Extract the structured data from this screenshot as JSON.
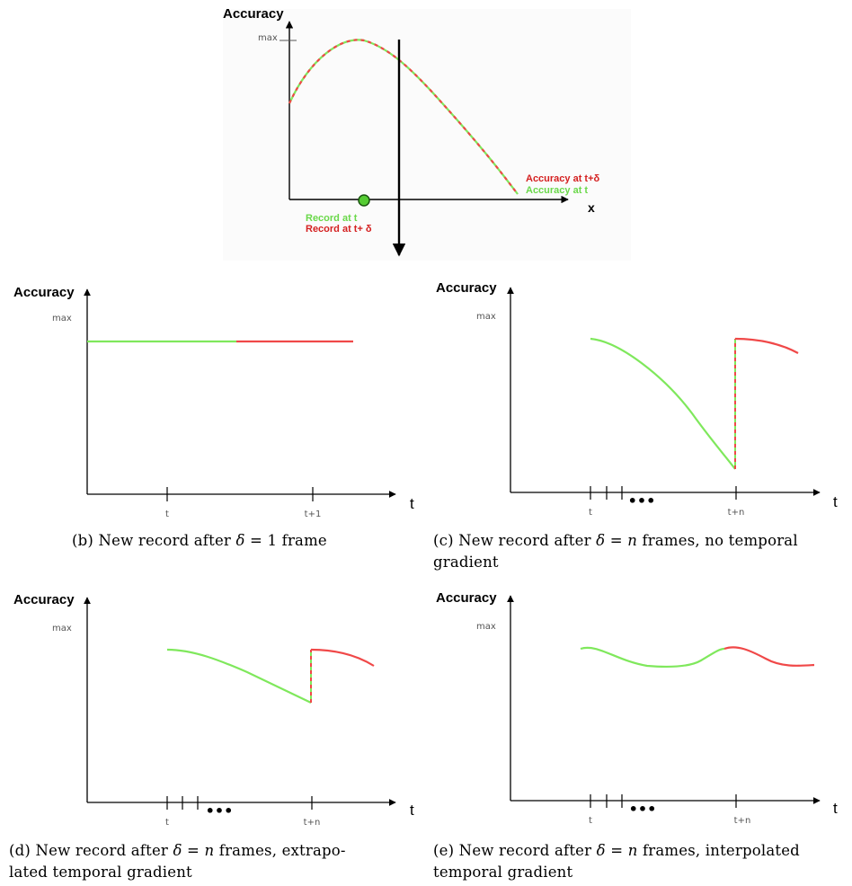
{
  "colors": {
    "current": "#7fe85c",
    "new": "#f04848",
    "dot": "#55cc33"
  },
  "diagram_a": {
    "y_title": "Accuracy",
    "max_label": "max",
    "x_label": "x",
    "legend_new": "Accuracy at t+δ",
    "legend_current": "Accuracy at t",
    "record_current": "Record at t",
    "record_new": "Record at t+ δ"
  },
  "panels": {
    "b": {
      "y_title": "Accuracy",
      "max_label": "max",
      "t_axis": "t",
      "ticks": [
        "t",
        "t+1"
      ],
      "caption_prefix": "(b)  New record after ",
      "caption_delta": "δ",
      "caption_rest": " = 1 frame"
    },
    "c": {
      "y_title": "Accuracy",
      "max_label": "max",
      "t_axis": "t",
      "ticks": [
        "t",
        "t+n"
      ],
      "dots": "•••",
      "caption_prefix": "(c)  New record after ",
      "caption_delta": "δ",
      "caption_eq": " = ",
      "caption_n": "n",
      "caption_rest": " frames, no temporal",
      "caption_line2": "gradient"
    },
    "d": {
      "y_title": "Accuracy",
      "max_label": "max",
      "t_axis": "t",
      "ticks": [
        "t",
        "t+n"
      ],
      "dots": "•••",
      "caption_prefix": "(d)  New record after ",
      "caption_delta": "δ",
      "caption_eq": " = ",
      "caption_n": "n",
      "caption_rest": " frames, extrapo-",
      "caption_line2": "lated temporal gradient"
    },
    "e": {
      "y_title": "Accuracy",
      "max_label": "max",
      "t_axis": "t",
      "ticks": [
        "t",
        "t+n"
      ],
      "dots": "•••",
      "caption_prefix": "(e)  New record after ",
      "caption_delta": "δ",
      "caption_eq": " = ",
      "caption_n": "n",
      "caption_rest": " frames, interpolated",
      "caption_line2": "temporal gradient"
    }
  }
}
